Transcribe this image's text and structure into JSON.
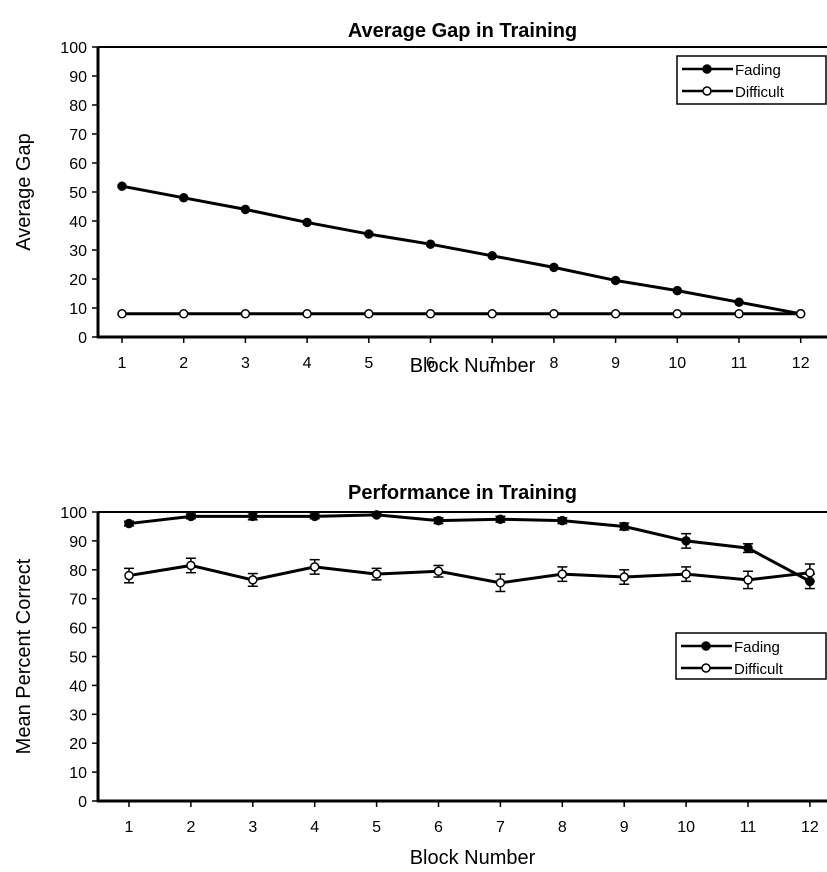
{
  "chart_data": [
    {
      "type": "line",
      "title": "Average Gap in Training",
      "xlabel": "Block Number",
      "ylabel": "Average  Gap",
      "categories": [
        "1",
        "2",
        "3",
        "4",
        "5",
        "6",
        "7",
        "8",
        "9",
        "10",
        "11",
        "12"
      ],
      "ylim": [
        0,
        100
      ],
      "yticks": [
        "0",
        "10",
        "20",
        "30",
        "40",
        "50",
        "60",
        "70",
        "80",
        "90",
        "100"
      ],
      "grid": false,
      "legend_position": "top-right",
      "series": [
        {
          "name": "Fading",
          "marker": "filled-circle",
          "color": "#000000",
          "values": [
            52,
            48,
            44,
            39.5,
            35.5,
            32,
            28,
            24,
            19.5,
            16,
            12,
            8
          ]
        },
        {
          "name": "Difficult",
          "marker": "open-circle",
          "color": "#000000",
          "values": [
            8,
            8,
            8,
            8,
            8,
            8,
            8,
            8,
            8,
            8,
            8,
            8
          ]
        }
      ]
    },
    {
      "type": "line",
      "title": "Performance in Training",
      "xlabel": "Block Number",
      "ylabel": "Mean Percent  Correct",
      "categories": [
        "1",
        "2",
        "3",
        "4",
        "5",
        "6",
        "7",
        "8",
        "9",
        "10",
        "11",
        "12"
      ],
      "ylim": [
        0,
        100
      ],
      "yticks": [
        "0",
        "10",
        "20",
        "30",
        "40",
        "50",
        "60",
        "70",
        "80",
        "90",
        "100"
      ],
      "grid": false,
      "legend_position": "right",
      "error_bars": true,
      "series": [
        {
          "name": "Fading",
          "marker": "filled-circle",
          "color": "#000000",
          "values": [
            96,
            98.5,
            98.5,
            98.5,
            99,
            97,
            97.5,
            97,
            95,
            90,
            87.5,
            76
          ],
          "errors": [
            0.8,
            0.8,
            1.2,
            0.8,
            0.5,
            1,
            1,
            1,
            1.2,
            2.5,
            1.5,
            2.5
          ]
        },
        {
          "name": "Difficult",
          "marker": "open-circle",
          "color": "#000000",
          "values": [
            78,
            81.5,
            76.5,
            81,
            78.5,
            79.5,
            75.5,
            78.5,
            77.5,
            78.5,
            76.5,
            79
          ],
          "errors": [
            2.5,
            2.5,
            2.2,
            2.5,
            2,
            2,
            3,
            2.5,
            2.5,
            2.5,
            3,
            3
          ]
        }
      ]
    }
  ]
}
